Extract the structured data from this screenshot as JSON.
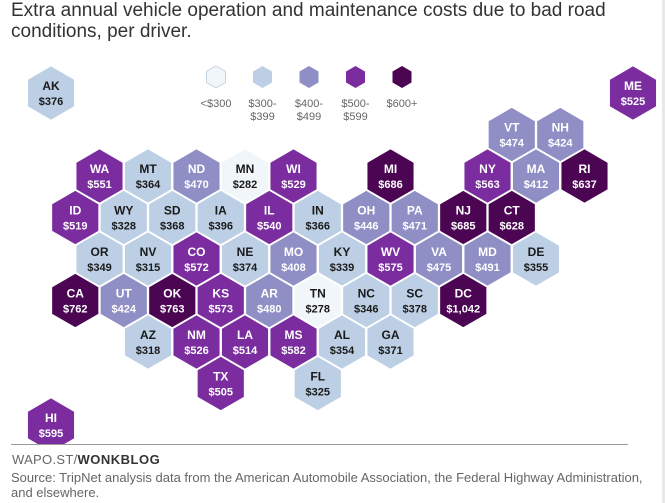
{
  "title": "Extra annual vehicle operation and maintenance costs due to bad road conditions, per driver.",
  "credit": {
    "prefix": "WAPO.ST/",
    "brand": "WONKBLOG"
  },
  "source": "Source: TripNet analysis data from the American Automobile Association, the Federal Highway Administration, and elsewhere.",
  "colors": {
    "b0": "#f1f6fa",
    "b1": "#bccfe4",
    "b2": "#8f8fc6",
    "b3": "#7b2d9f",
    "b4": "#4b0553",
    "text_dark": "#1a1a1a",
    "text_light": "#ffffff",
    "stroke": "#ffffff"
  },
  "chart_data": {
    "type": "hex-tile-map",
    "title": "Extra annual vehicle operation and maintenance costs due to bad road conditions, per driver.",
    "unit": "USD per driver per year",
    "legend": [
      {
        "bin": "b0",
        "line1": "<$300",
        "line2": ""
      },
      {
        "bin": "b1",
        "line1": "$300-",
        "line2": "$399"
      },
      {
        "bin": "b2",
        "line1": "$400-",
        "line2": "$499"
      },
      {
        "bin": "b3",
        "line1": "$500-",
        "line2": "$599"
      },
      {
        "bin": "b4",
        "line1": "$600+",
        "line2": ""
      }
    ],
    "states": [
      {
        "code": "AK",
        "label": "$376",
        "value": 376,
        "row": 0,
        "col": 0,
        "bin": "b1"
      },
      {
        "code": "ME",
        "label": "$525",
        "value": 525,
        "row": 0,
        "col": 12,
        "bin": "b3"
      },
      {
        "code": "VT",
        "label": "$474",
        "value": 474,
        "row": 1,
        "col": 10,
        "bin": "b2"
      },
      {
        "code": "NH",
        "label": "$424",
        "value": 424,
        "row": 1,
        "col": 11,
        "bin": "b2"
      },
      {
        "code": "WA",
        "label": "$551",
        "value": 551,
        "row": 2,
        "col": 1,
        "bin": "b3"
      },
      {
        "code": "MT",
        "label": "$364",
        "value": 364,
        "row": 2,
        "col": 2,
        "bin": "b1"
      },
      {
        "code": "ND",
        "label": "$470",
        "value": 470,
        "row": 2,
        "col": 3,
        "bin": "b2"
      },
      {
        "code": "MN",
        "label": "$282",
        "value": 282,
        "row": 2,
        "col": 4,
        "bin": "b0"
      },
      {
        "code": "WI",
        "label": "$529",
        "value": 529,
        "row": 2,
        "col": 5,
        "bin": "b3"
      },
      {
        "code": "MI",
        "label": "$686",
        "value": 686,
        "row": 2,
        "col": 7,
        "bin": "b4"
      },
      {
        "code": "NY",
        "label": "$563",
        "value": 563,
        "row": 2,
        "col": 9,
        "bin": "b3"
      },
      {
        "code": "MA",
        "label": "$412",
        "value": 412,
        "row": 2,
        "col": 10,
        "bin": "b2"
      },
      {
        "code": "RI",
        "label": "$637",
        "value": 637,
        "row": 2,
        "col": 11,
        "bin": "b4"
      },
      {
        "code": "ID",
        "label": "$519",
        "value": 519,
        "row": 3,
        "col": 1,
        "bin": "b3"
      },
      {
        "code": "WY",
        "label": "$328",
        "value": 328,
        "row": 3,
        "col": 2,
        "bin": "b1"
      },
      {
        "code": "SD",
        "label": "$368",
        "value": 368,
        "row": 3,
        "col": 3,
        "bin": "b1"
      },
      {
        "code": "IA",
        "label": "$396",
        "value": 396,
        "row": 3,
        "col": 4,
        "bin": "b1"
      },
      {
        "code": "IL",
        "label": "$540",
        "value": 540,
        "row": 3,
        "col": 5,
        "bin": "b3"
      },
      {
        "code": "IN",
        "label": "$366",
        "value": 366,
        "row": 3,
        "col": 6,
        "bin": "b1"
      },
      {
        "code": "OH",
        "label": "$446",
        "value": 446,
        "row": 3,
        "col": 7,
        "bin": "b2"
      },
      {
        "code": "PA",
        "label": "$471",
        "value": 471,
        "row": 3,
        "col": 8,
        "bin": "b2"
      },
      {
        "code": "NJ",
        "label": "$685",
        "value": 685,
        "row": 3,
        "col": 9,
        "bin": "b4"
      },
      {
        "code": "CT",
        "label": "$628",
        "value": 628,
        "row": 3,
        "col": 10,
        "bin": "b4"
      },
      {
        "code": "OR",
        "label": "$349",
        "value": 349,
        "row": 4,
        "col": 1,
        "bin": "b1"
      },
      {
        "code": "NV",
        "label": "$315",
        "value": 315,
        "row": 4,
        "col": 2,
        "bin": "b1"
      },
      {
        "code": "CO",
        "label": "$572",
        "value": 572,
        "row": 4,
        "col": 3,
        "bin": "b3"
      },
      {
        "code": "NE",
        "label": "$374",
        "value": 374,
        "row": 4,
        "col": 4,
        "bin": "b1"
      },
      {
        "code": "MO",
        "label": "$408",
        "value": 408,
        "row": 4,
        "col": 5,
        "bin": "b2"
      },
      {
        "code": "KY",
        "label": "$339",
        "value": 339,
        "row": 4,
        "col": 6,
        "bin": "b1"
      },
      {
        "code": "WV",
        "label": "$575",
        "value": 575,
        "row": 4,
        "col": 7,
        "bin": "b3"
      },
      {
        "code": "VA",
        "label": "$475",
        "value": 475,
        "row": 4,
        "col": 8,
        "bin": "b2"
      },
      {
        "code": "MD",
        "label": "$491",
        "value": 491,
        "row": 4,
        "col": 9,
        "bin": "b2"
      },
      {
        "code": "DE",
        "label": "$355",
        "value": 355,
        "row": 4,
        "col": 10,
        "bin": "b1"
      },
      {
        "code": "CA",
        "label": "$762",
        "value": 762,
        "row": 5,
        "col": 1,
        "bin": "b4"
      },
      {
        "code": "UT",
        "label": "$424",
        "value": 424,
        "row": 5,
        "col": 2,
        "bin": "b2"
      },
      {
        "code": "OK",
        "label": "$763",
        "value": 763,
        "row": 5,
        "col": 3,
        "bin": "b4"
      },
      {
        "code": "KS",
        "label": "$573",
        "value": 573,
        "row": 5,
        "col": 4,
        "bin": "b3"
      },
      {
        "code": "AR",
        "label": "$480",
        "value": 480,
        "row": 5,
        "col": 5,
        "bin": "b2"
      },
      {
        "code": "TN",
        "label": "$278",
        "value": 278,
        "row": 5,
        "col": 6,
        "bin": "b0"
      },
      {
        "code": "NC",
        "label": "$346",
        "value": 346,
        "row": 5,
        "col": 7,
        "bin": "b1"
      },
      {
        "code": "SC",
        "label": "$378",
        "value": 378,
        "row": 5,
        "col": 8,
        "bin": "b1"
      },
      {
        "code": "DC",
        "label": "$1,042",
        "value": 1042,
        "row": 5,
        "col": 9,
        "bin": "b4"
      },
      {
        "code": "AZ",
        "label": "$318",
        "value": 318,
        "row": 6,
        "col": 2,
        "bin": "b1"
      },
      {
        "code": "NM",
        "label": "$526",
        "value": 526,
        "row": 6,
        "col": 3,
        "bin": "b3"
      },
      {
        "code": "LA",
        "label": "$514",
        "value": 514,
        "row": 6,
        "col": 4,
        "bin": "b3"
      },
      {
        "code": "MS",
        "label": "$582",
        "value": 582,
        "row": 6,
        "col": 5,
        "bin": "b3"
      },
      {
        "code": "AL",
        "label": "$354",
        "value": 354,
        "row": 6,
        "col": 6,
        "bin": "b1"
      },
      {
        "code": "GA",
        "label": "$371",
        "value": 371,
        "row": 6,
        "col": 7,
        "bin": "b1"
      },
      {
        "code": "TX",
        "label": "$505",
        "value": 505,
        "row": 7,
        "col": 4,
        "bin": "b3"
      },
      {
        "code": "FL",
        "label": "$325",
        "value": 325,
        "row": 7,
        "col": 6,
        "bin": "b1"
      },
      {
        "code": "HI",
        "label": "$595",
        "value": 595,
        "row": 8,
        "col": 0,
        "bin": "b3"
      }
    ]
  }
}
